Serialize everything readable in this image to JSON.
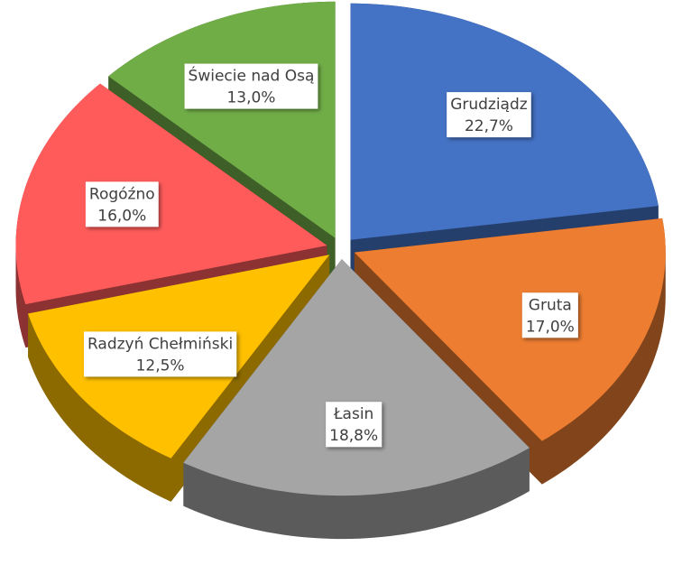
{
  "chart_data": {
    "type": "pie",
    "categories": [
      "Grudziądz",
      "Gruta",
      "Łasin",
      "Radzyń Chełmiński",
      "Rogóźno",
      "Świecie nad Osą"
    ],
    "values": [
      22.7,
      17.0,
      18.8,
      12.5,
      16.0,
      13.0
    ],
    "value_labels": [
      "22,7%",
      "17,0%",
      "18,8%",
      "12,5%",
      "16,0%",
      "13,0%"
    ],
    "colors": [
      "#4472c4",
      "#ed7d31",
      "#a5a5a5",
      "#ffc000",
      "#ff5b5b",
      "#70ad47"
    ]
  }
}
